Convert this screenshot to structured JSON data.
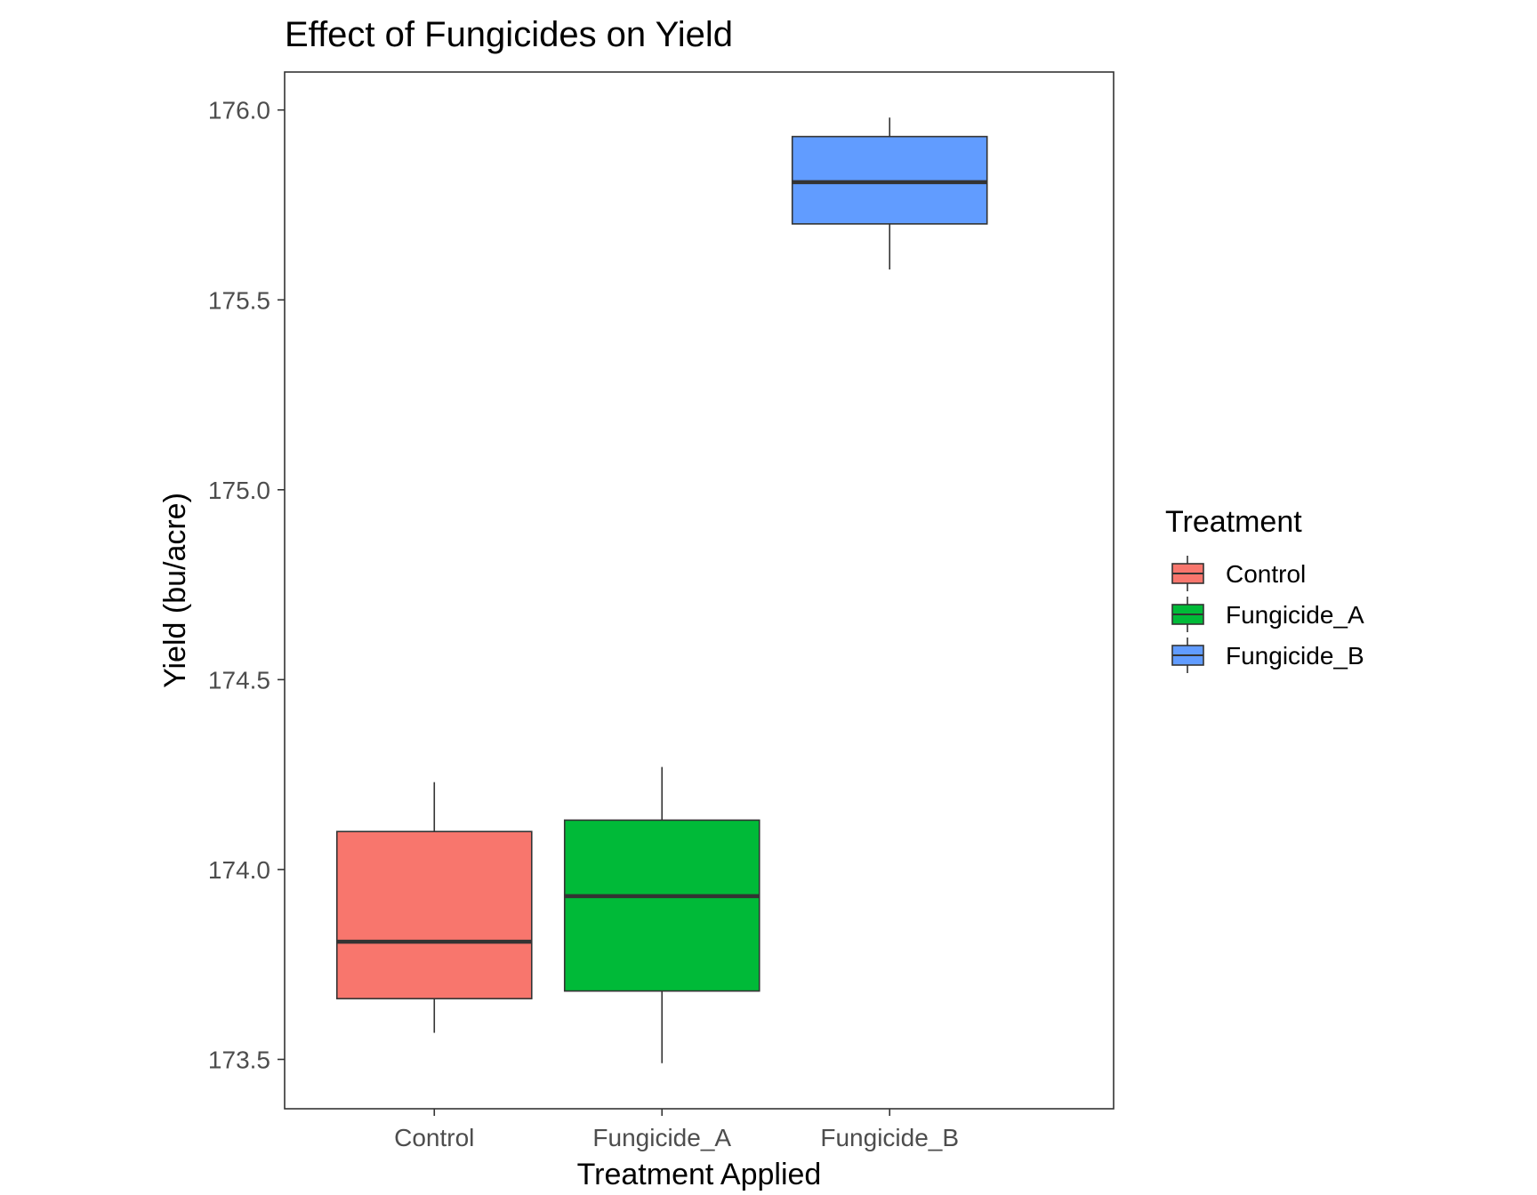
{
  "chart_data": {
    "type": "box",
    "title": "Effect of Fungicides on Yield",
    "xlabel": "Treatment Applied",
    "ylabel": "Yield (bu/acre)",
    "ylim": [
      173.37,
      176.1
    ],
    "yticks": [
      173.5,
      174.0,
      174.5,
      175.0,
      175.5,
      176.0
    ],
    "ytick_labels": [
      "173.5",
      "174.0",
      "174.5",
      "175.0",
      "175.5",
      "176.0"
    ],
    "categories": [
      "Control",
      "Fungicide_A",
      "Fungicide_B"
    ],
    "boxes": [
      {
        "category": "Control",
        "min": 173.57,
        "q1": 173.66,
        "median": 173.81,
        "q3": 174.1,
        "max": 174.23,
        "color": "#F8766D"
      },
      {
        "category": "Fungicide_A",
        "min": 173.49,
        "q1": 173.68,
        "median": 173.93,
        "q3": 174.13,
        "max": 174.27,
        "color": "#00BA38"
      },
      {
        "category": "Fungicide_B",
        "min": 175.58,
        "q1": 175.7,
        "median": 175.81,
        "q3": 175.93,
        "max": 175.98,
        "color": "#619CFF"
      }
    ],
    "legend": {
      "title": "Treatment",
      "position": "right",
      "entries": [
        "Control",
        "Fungicide_A",
        "Fungicide_B"
      ]
    },
    "grid": false
  }
}
